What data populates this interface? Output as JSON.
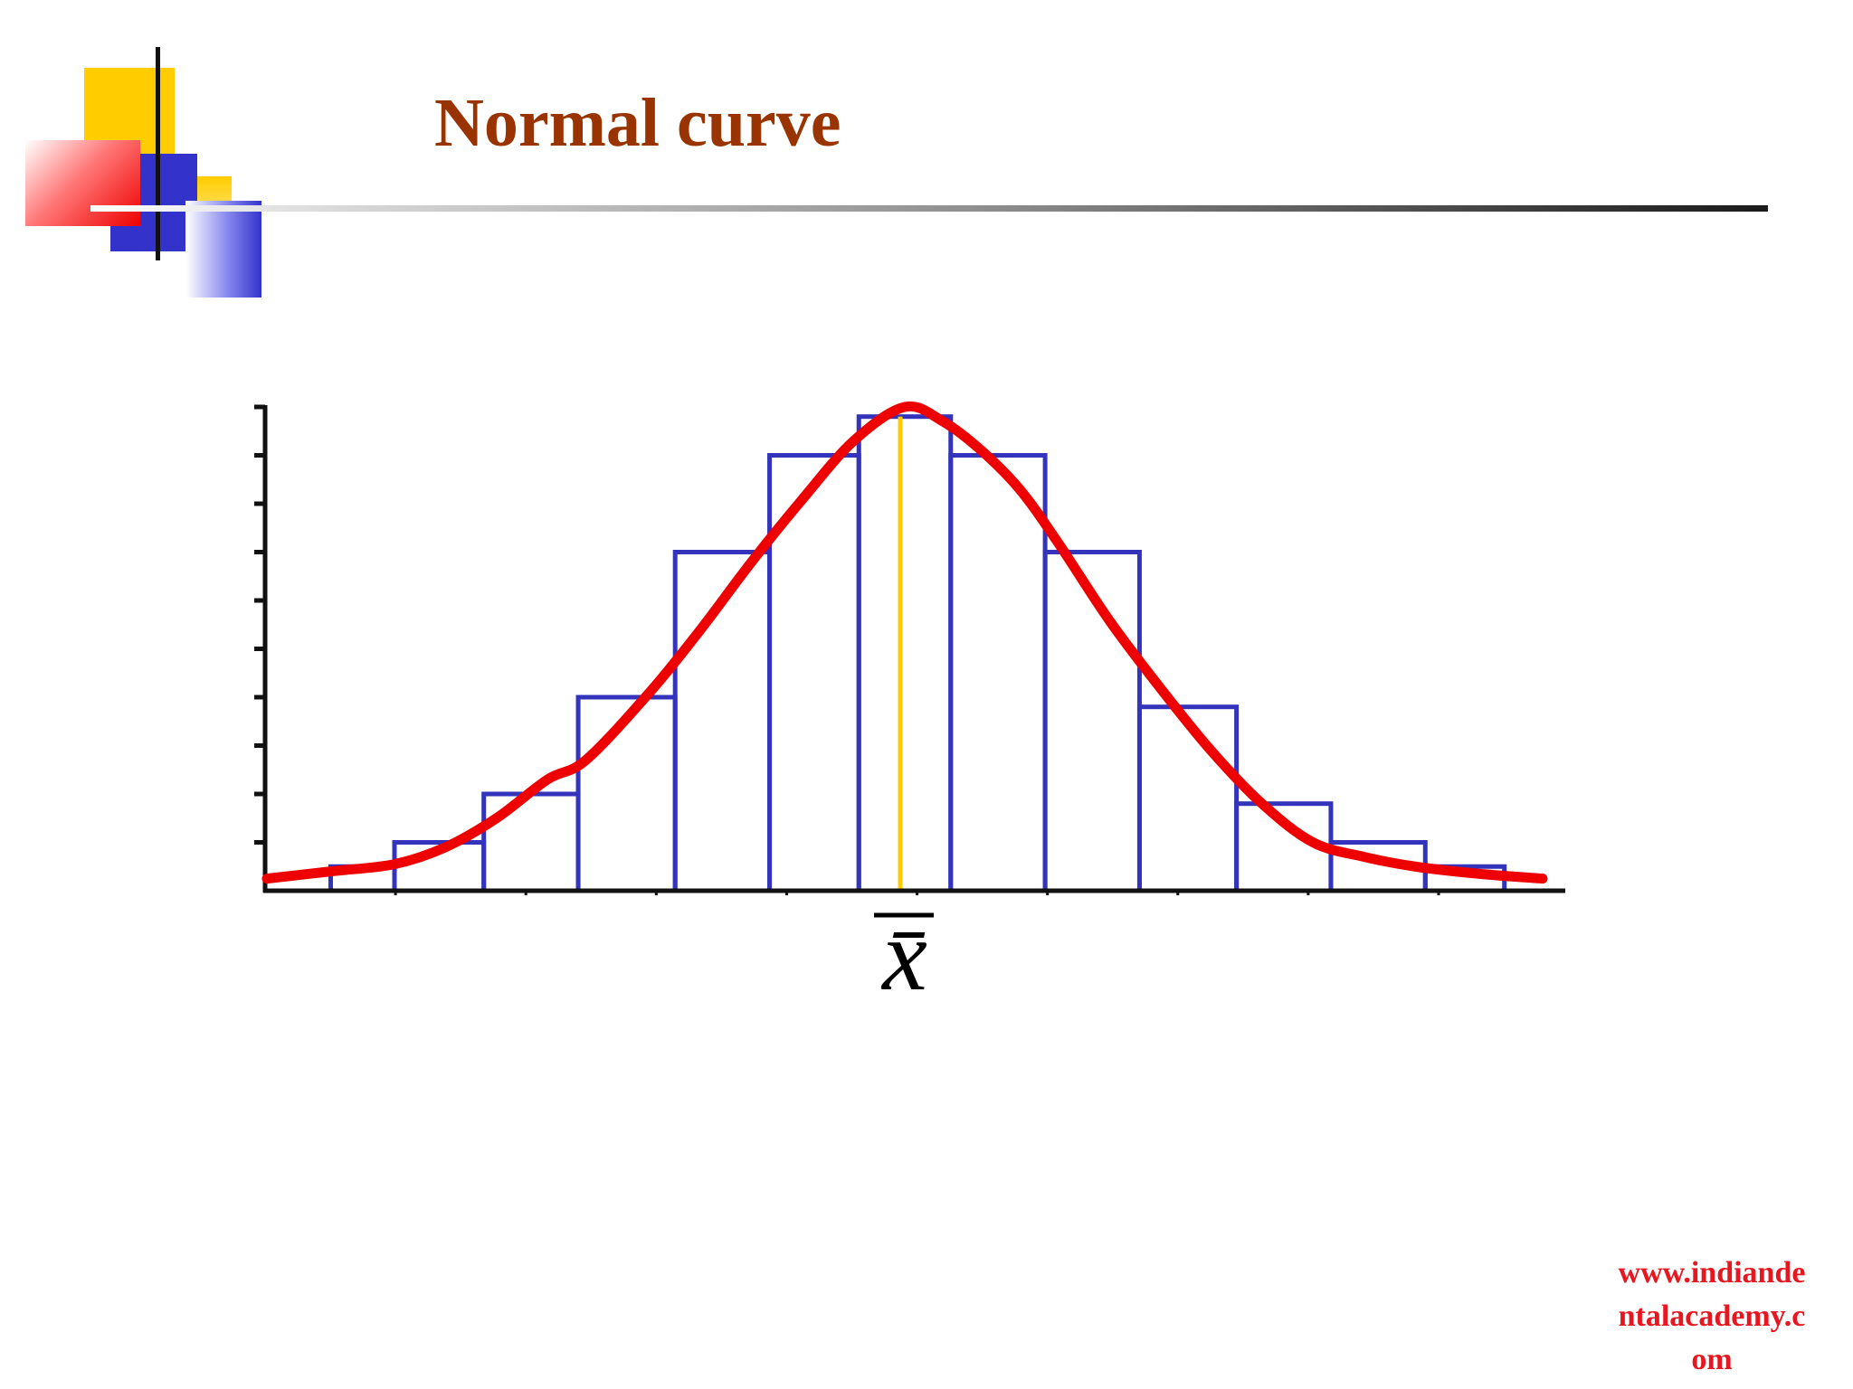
{
  "slide": {
    "title": "Normal curve",
    "footer": "www.indiande\nntalacademy.c\nom",
    "colors": {
      "title": "#993300",
      "footer": "#e8161e",
      "bars": "#3333bb",
      "curve": "#ee0000",
      "mean_line": "#ffcc00",
      "axes": "#111111"
    },
    "decoration": {
      "icons": [
        "yellow-square",
        "red-gradient-square",
        "blue-square",
        "blue-gradient-square"
      ]
    }
  },
  "chart_data": {
    "type": "bar",
    "title": "Normal curve",
    "xlabel": "x̄",
    "ylabel": "",
    "grid": false,
    "legend": "none",
    "x_tick_count": 9,
    "y_tick_count": 10,
    "ylim": [
      0,
      10
    ],
    "xlim": [
      -2.5,
      2.5
    ],
    "series": [
      {
        "type": "histogram",
        "bins": [
          {
            "x0": -2.25,
            "x1": -2.0,
            "value": 0.5
          },
          {
            "x0": -2.0,
            "x1": -1.65,
            "value": 1.0
          },
          {
            "x0": -1.65,
            "x1": -1.28,
            "value": 2.0
          },
          {
            "x0": -1.28,
            "x1": -0.9,
            "value": 4.0
          },
          {
            "x0": -0.9,
            "x1": -0.53,
            "value": 7.0
          },
          {
            "x0": -0.53,
            "x1": -0.18,
            "value": 9.0
          },
          {
            "x0": -0.18,
            "x1": 0.18,
            "value": 9.8
          },
          {
            "x0": 0.18,
            "x1": 0.55,
            "value": 9.0
          },
          {
            "x0": 0.55,
            "x1": 0.92,
            "value": 7.0
          },
          {
            "x0": 0.92,
            "x1": 1.3,
            "value": 3.8
          },
          {
            "x0": 1.3,
            "x1": 1.67,
            "value": 1.8
          },
          {
            "x0": 1.67,
            "x1": 2.04,
            "value": 1.0
          },
          {
            "x0": 2.04,
            "x1": 2.35,
            "value": 0.5
          }
        ]
      },
      {
        "type": "curve",
        "points": [
          [
            -2.5,
            0.25
          ],
          [
            -2.25,
            0.4
          ],
          [
            -2.0,
            0.55
          ],
          [
            -1.8,
            0.9
          ],
          [
            -1.6,
            1.5
          ],
          [
            -1.4,
            2.3
          ],
          [
            -1.25,
            2.7
          ],
          [
            -1.0,
            4.1
          ],
          [
            -0.8,
            5.4
          ],
          [
            -0.6,
            6.8
          ],
          [
            -0.4,
            8.1
          ],
          [
            -0.2,
            9.3
          ],
          [
            0.0,
            10.0
          ],
          [
            0.15,
            9.7
          ],
          [
            0.3,
            9.1
          ],
          [
            0.45,
            8.3
          ],
          [
            0.6,
            7.2
          ],
          [
            0.8,
            5.6
          ],
          [
            1.0,
            4.2
          ],
          [
            1.2,
            2.9
          ],
          [
            1.4,
            1.8
          ],
          [
            1.6,
            1.0
          ],
          [
            1.8,
            0.7
          ],
          [
            2.0,
            0.5
          ],
          [
            2.25,
            0.35
          ],
          [
            2.5,
            0.25
          ]
        ]
      },
      {
        "type": "vline",
        "x": 0.0
      }
    ]
  }
}
